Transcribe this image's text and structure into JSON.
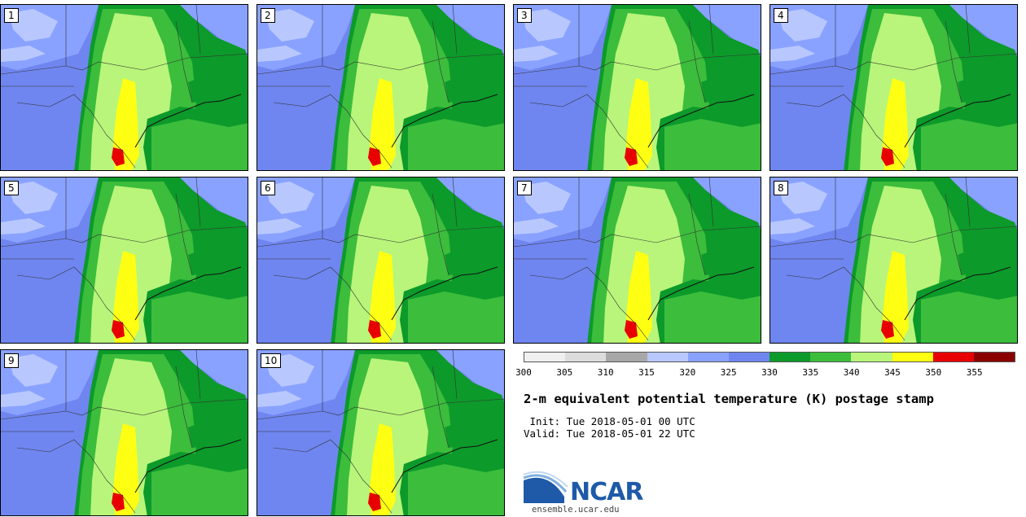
{
  "panels": [
    {
      "label": "1"
    },
    {
      "label": "2"
    },
    {
      "label": "3"
    },
    {
      "label": "4"
    },
    {
      "label": "5"
    },
    {
      "label": "6"
    },
    {
      "label": "7"
    },
    {
      "label": "8"
    },
    {
      "label": "9"
    },
    {
      "label": "10"
    }
  ],
  "colorbar": {
    "colors": [
      "#f0f0f0",
      "#dcdcdc",
      "#a8a8a8",
      "#b8c8ff",
      "#8aa2ff",
      "#6f86f0",
      "#0c9a2a",
      "#3cbd3c",
      "#b8f57a",
      "#ffff14",
      "#e80000",
      "#8a0000"
    ],
    "ticks": [
      "300",
      "305",
      "310",
      "315",
      "320",
      "325",
      "330",
      "335",
      "340",
      "345",
      "350",
      "355"
    ]
  },
  "title": "2-m equivalent potential temperature (K) postage stamp",
  "init": " Init: Tue 2018-05-01 00 UTC",
  "valid": "Valid: Tue 2018-05-01 22 UTC",
  "logo": {
    "text": "NCAR",
    "url": "ensemble.ucar.edu",
    "icon": "ncar-logo-icon"
  }
}
